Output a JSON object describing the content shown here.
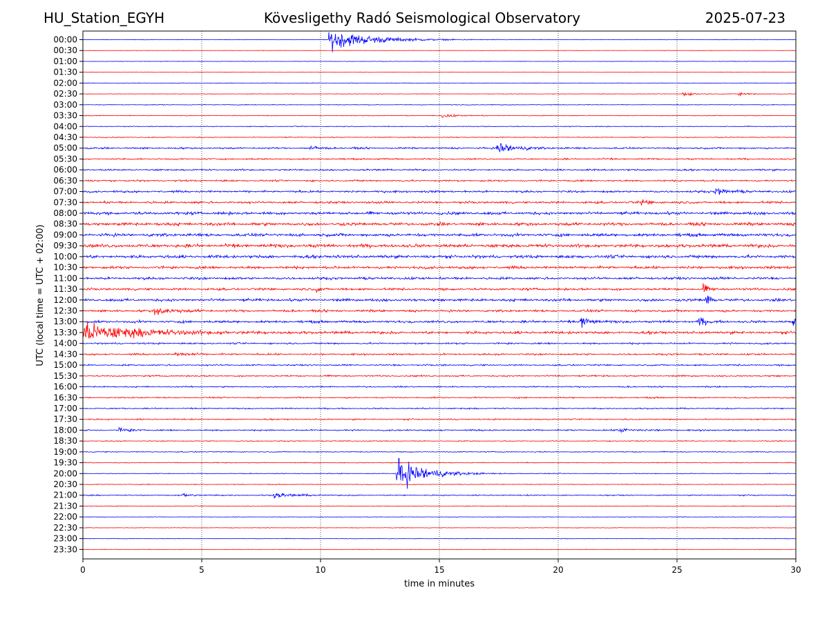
{
  "header": {
    "station": "HU_Station_EGYH",
    "title": "Kövesligethy Radó Seismological Observatory",
    "date": "2025-07-23"
  },
  "chart_data": {
    "type": "line",
    "title": "Kövesligethy Radó Seismological Observatory",
    "xlabel": "time in minutes",
    "ylabel": "UTC (local time = UTC + 02:00)",
    "xlim": [
      0,
      30
    ],
    "xticks": [
      0,
      5,
      10,
      15,
      20,
      25,
      30
    ],
    "grid": "vertical dotted lines at 5-minute intervals",
    "colors": [
      "#0000ff",
      "#ff0000"
    ],
    "rows": [
      {
        "label": "00:00",
        "noise": 0.25,
        "events": [
          {
            "t": 10.35,
            "amp": 13,
            "dur": 4.5
          }
        ]
      },
      {
        "label": "00:30",
        "noise": 0.25,
        "events": []
      },
      {
        "label": "01:00",
        "noise": 0.25,
        "events": []
      },
      {
        "label": "01:30",
        "noise": 0.25,
        "events": []
      },
      {
        "label": "02:00",
        "noise": 0.3,
        "events": []
      },
      {
        "label": "02:30",
        "noise": 0.3,
        "events": [
          {
            "t": 25.2,
            "amp": 2.5,
            "dur": 1.2
          },
          {
            "t": 27.6,
            "amp": 2,
            "dur": 1.3
          }
        ]
      },
      {
        "label": "03:00",
        "noise": 0.4,
        "events": []
      },
      {
        "label": "03:30",
        "noise": 0.4,
        "events": [
          {
            "t": 15.1,
            "amp": 2.5,
            "dur": 1.5
          }
        ]
      },
      {
        "label": "04:00",
        "noise": 0.45,
        "events": []
      },
      {
        "label": "04:30",
        "noise": 0.5,
        "events": []
      },
      {
        "label": "05:00",
        "noise": 0.9,
        "events": [
          {
            "t": 17.4,
            "amp": 9,
            "dur": 1.8
          },
          {
            "t": 9.5,
            "amp": 3,
            "dur": 1.2
          }
        ]
      },
      {
        "label": "05:30",
        "noise": 0.8,
        "events": []
      },
      {
        "label": "06:00",
        "noise": 0.9,
        "events": []
      },
      {
        "label": "06:30",
        "noise": 0.9,
        "events": []
      },
      {
        "label": "07:00",
        "noise": 1.1,
        "events": [
          {
            "t": 26.6,
            "amp": 4,
            "dur": 1.5
          }
        ]
      },
      {
        "label": "07:30",
        "noise": 1.2,
        "events": [
          {
            "t": 23.5,
            "amp": 3.5,
            "dur": 1
          }
        ]
      },
      {
        "label": "08:00",
        "noise": 1.5,
        "events": []
      },
      {
        "label": "08:30",
        "noise": 1.6,
        "events": []
      },
      {
        "label": "09:00",
        "noise": 1.6,
        "events": []
      },
      {
        "label": "09:30",
        "noise": 1.8,
        "events": []
      },
      {
        "label": "10:00",
        "noise": 1.6,
        "events": []
      },
      {
        "label": "10:30",
        "noise": 1.4,
        "events": []
      },
      {
        "label": "11:00",
        "noise": 1.3,
        "events": []
      },
      {
        "label": "11:30",
        "noise": 1.2,
        "events": [
          {
            "t": 9.8,
            "amp": 4,
            "dur": 0.5
          },
          {
            "t": 26.1,
            "amp": 6,
            "dur": 0.5
          }
        ]
      },
      {
        "label": "12:00",
        "noise": 1.4,
        "events": [
          {
            "t": 26.2,
            "amp": 8,
            "dur": 0.5
          }
        ]
      },
      {
        "label": "12:30",
        "noise": 1.2,
        "events": [
          {
            "t": 3.0,
            "amp": 5,
            "dur": 2
          }
        ]
      },
      {
        "label": "13:00",
        "noise": 1.3,
        "events": [
          {
            "t": 20.9,
            "amp": 8,
            "dur": 1
          },
          {
            "t": 25.9,
            "amp": 6,
            "dur": 0.8
          },
          {
            "t": 29.85,
            "amp": 10,
            "dur": 0.3
          }
        ]
      },
      {
        "label": "13:30",
        "noise": 1.4,
        "events": [
          {
            "t": 0.0,
            "amp": 12,
            "dur": 6
          }
        ]
      },
      {
        "label": "14:00",
        "noise": 0.9,
        "events": []
      },
      {
        "label": "14:30",
        "noise": 0.9,
        "events": [
          {
            "t": 3.8,
            "amp": 3,
            "dur": 1.5
          }
        ]
      },
      {
        "label": "15:00",
        "noise": 0.8,
        "events": []
      },
      {
        "label": "15:30",
        "noise": 0.8,
        "events": []
      },
      {
        "label": "16:00",
        "noise": 0.7,
        "events": []
      },
      {
        "label": "16:30",
        "noise": 0.7,
        "events": []
      },
      {
        "label": "17:00",
        "noise": 0.7,
        "events": []
      },
      {
        "label": "17:30",
        "noise": 0.7,
        "events": []
      },
      {
        "label": "18:00",
        "noise": 0.8,
        "events": [
          {
            "t": 1.5,
            "amp": 3,
            "dur": 1
          },
          {
            "t": 22.5,
            "amp": 2.5,
            "dur": 2
          }
        ]
      },
      {
        "label": "18:30",
        "noise": 0.5,
        "events": []
      },
      {
        "label": "19:00",
        "noise": 0.5,
        "events": []
      },
      {
        "label": "19:30",
        "noise": 0.45,
        "events": []
      },
      {
        "label": "20:00",
        "noise": 0.4,
        "events": [
          {
            "t": 13.2,
            "amp": 21,
            "dur": 3
          }
        ]
      },
      {
        "label": "20:30",
        "noise": 0.4,
        "events": []
      },
      {
        "label": "21:00",
        "noise": 0.6,
        "events": [
          {
            "t": 8.0,
            "amp": 3,
            "dur": 2.5
          },
          {
            "t": 4.2,
            "amp": 2,
            "dur": 1.5
          }
        ]
      },
      {
        "label": "21:30",
        "noise": 0.4,
        "events": []
      },
      {
        "label": "22:00",
        "noise": 0.3,
        "events": []
      },
      {
        "label": "22:30",
        "noise": 0.3,
        "events": []
      },
      {
        "label": "23:00",
        "noise": 0.3,
        "events": []
      },
      {
        "label": "23:30",
        "noise": 0.3,
        "events": []
      }
    ]
  }
}
